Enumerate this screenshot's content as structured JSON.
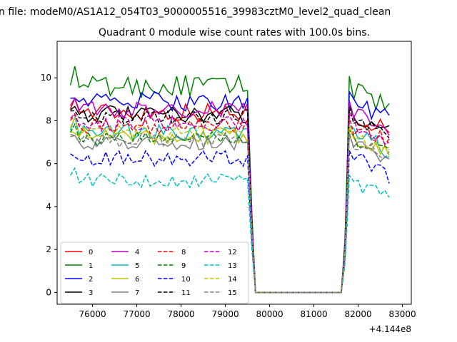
{
  "figure": {
    "suptitle": "n file: modeM0/AS1A12_054T03_9000005516_39983cztM0_level2_quad_clean",
    "title": "Quadrant 0 module wise count rates with 100.0s bins.",
    "offset_label": "+4.144e8"
  },
  "chart_data": {
    "type": "line",
    "title": "Quadrant 0 module wise count rates with 100.0s bins.",
    "xlabel": "",
    "ylabel": "",
    "x_offset": 414400000,
    "xlim": [
      75200,
      83200
    ],
    "ylim": [
      -0.55,
      11.7
    ],
    "xticks": [
      76000,
      77000,
      78000,
      79000,
      80000,
      81000,
      82000,
      83000
    ],
    "yticks": [
      0,
      2,
      4,
      6,
      8,
      10
    ],
    "grid": false,
    "legend": "lower-left",
    "legend_columns": 4,
    "series": [
      {
        "name": "0",
        "color": "#ff0000",
        "dash": "solid",
        "base_level": 8.4,
        "amplitude": 0.45
      },
      {
        "name": "1",
        "color": "#008000",
        "dash": "solid",
        "base_level": 9.6,
        "amplitude": 0.55
      },
      {
        "name": "2",
        "color": "#0000ff",
        "dash": "solid",
        "base_level": 8.9,
        "amplitude": 0.45
      },
      {
        "name": "3",
        "color": "#000000",
        "dash": "solid",
        "base_level": 8.3,
        "amplitude": 0.4
      },
      {
        "name": "4",
        "color": "#bf00bf",
        "dash": "solid",
        "base_level": 8.5,
        "amplitude": 0.4
      },
      {
        "name": "5",
        "color": "#00bfbf",
        "dash": "solid",
        "base_level": 7.4,
        "amplitude": 0.45
      },
      {
        "name": "6",
        "color": "#bfbf00",
        "dash": "solid",
        "base_level": 7.3,
        "amplitude": 0.4
      },
      {
        "name": "7",
        "color": "#808080",
        "dash": "solid",
        "base_level": 7.0,
        "amplitude": 0.35
      },
      {
        "name": "8",
        "color": "#ff0000",
        "dash": "dashed",
        "base_level": 7.8,
        "amplitude": 0.4
      },
      {
        "name": "9",
        "color": "#008000",
        "dash": "dashed",
        "base_level": 7.2,
        "amplitude": 0.35
      },
      {
        "name": "10",
        "color": "#0000ff",
        "dash": "dashed",
        "base_level": 6.3,
        "amplitude": 0.45
      },
      {
        "name": "11",
        "color": "#000000",
        "dash": "dashed",
        "base_level": 8.2,
        "amplitude": 0.35
      },
      {
        "name": "12",
        "color": "#bf00bf",
        "dash": "dashed",
        "base_level": 7.9,
        "amplitude": 0.4
      },
      {
        "name": "13",
        "color": "#00bfbf",
        "dash": "dashed",
        "base_level": 5.2,
        "amplitude": 0.35
      },
      {
        "name": "14",
        "color": "#bfbf00",
        "dash": "dashed",
        "base_level": 7.4,
        "amplitude": 0.35
      },
      {
        "name": "15",
        "color": "#808080",
        "dash": "dashed",
        "base_level": 7.1,
        "amplitude": 0.35
      }
    ],
    "time_structure": {
      "first_bin": 75500,
      "bin_width": 100,
      "segment1_end": 79500,
      "dropoff": [
        [
          79550,
          0.68
        ],
        [
          79600,
          0.38
        ]
      ],
      "zero_start": 79680,
      "zero_end": 81620,
      "ramp": [
        [
          81700,
          0.25
        ],
        [
          81750,
          0.6
        ],
        [
          81800,
          1.05
        ]
      ],
      "segment2_start": 81800,
      "segment2_end": 82700
    }
  }
}
